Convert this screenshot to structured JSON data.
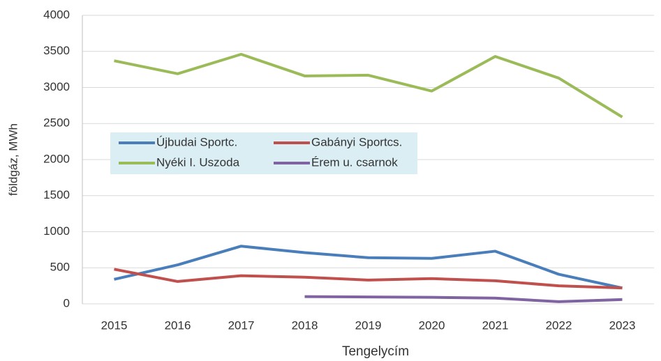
{
  "chart_data": {
    "type": "line",
    "y_label": "földgáz, MWh",
    "x_label": "Tengelycím",
    "categories": [
      "2015",
      "2016",
      "2017",
      "2018",
      "2019",
      "2020",
      "2021",
      "2022",
      "2023"
    ],
    "series": [
      {
        "name": "Újbudai Sportc.",
        "color": "#4a7ebb",
        "values": [
          340,
          540,
          800,
          710,
          640,
          630,
          730,
          410,
          220
        ]
      },
      {
        "name": "Gabányi Sportcs.",
        "color": "#c0504d",
        "values": [
          480,
          310,
          390,
          370,
          330,
          350,
          320,
          250,
          220
        ]
      },
      {
        "name": "Nyéki I. Uszoda",
        "color": "#9bbb59",
        "values": [
          3370,
          3190,
          3460,
          3160,
          3170,
          2950,
          3430,
          3130,
          2590
        ]
      },
      {
        "name": "Érem u. csarnok",
        "color": "#8064a2",
        "values": [
          null,
          null,
          null,
          100,
          95,
          90,
          80,
          30,
          60
        ]
      }
    ],
    "ylim": [
      0,
      4000
    ],
    "yticks": [
      0,
      500,
      1000,
      1500,
      2000,
      2500,
      3000,
      3500,
      4000
    ],
    "grid": true,
    "legend": "left"
  }
}
